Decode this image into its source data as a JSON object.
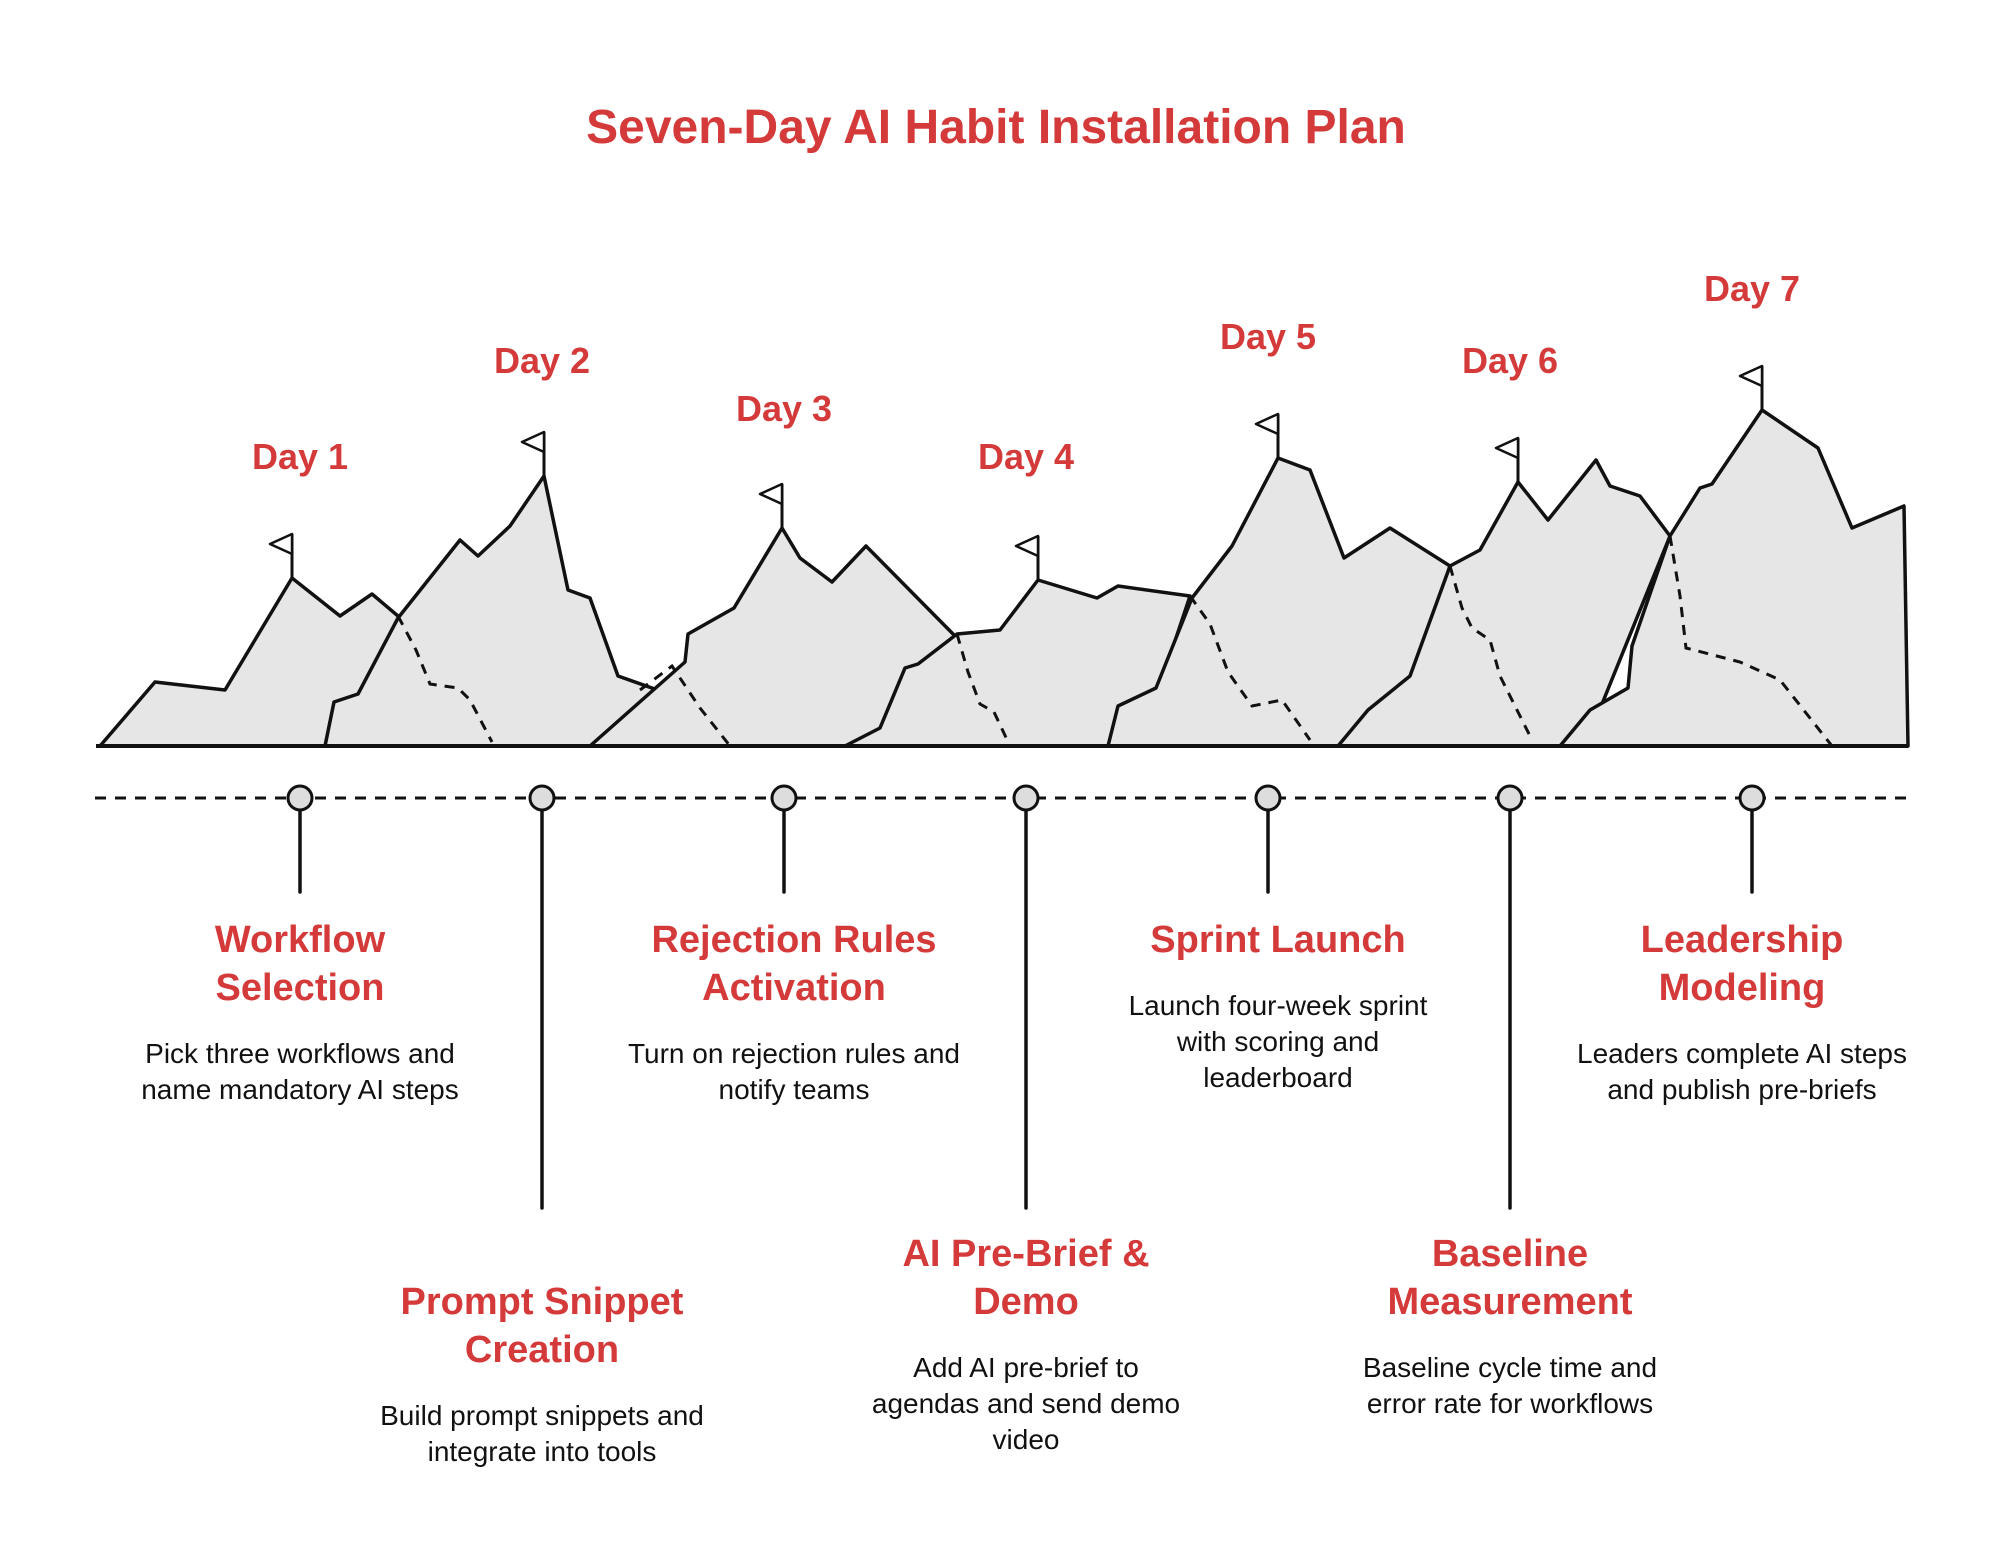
{
  "title": "Seven-Day AI Habit Installation Plan",
  "colors": {
    "accent": "#d43a3a",
    "ink": "#111111",
    "mountain_fill": "#e6e6e6"
  },
  "days": [
    {
      "label": "Day 1",
      "title": "Workflow Selection",
      "description": "Pick three workflows and name mandatory AI steps"
    },
    {
      "label": "Day 2",
      "title": "Prompt Snippet Creation",
      "description": "Build prompt snippets and integrate into tools"
    },
    {
      "label": "Day 3",
      "title": "Rejection Rules Activation",
      "description": "Turn on rejection rules and notify teams"
    },
    {
      "label": "Day 4",
      "title": "AI Pre-Brief & Demo",
      "description": "Add AI pre-brief to agendas and send demo video"
    },
    {
      "label": "Day 5",
      "title": "Sprint Launch",
      "description": "Launch four-week sprint with scoring and leaderboard"
    },
    {
      "label": "Day 6",
      "title": "Baseline Measurement",
      "description": "Baseline cycle time and error rate for workflows"
    },
    {
      "label": "Day 7",
      "title": "Leadership Modeling",
      "description": "Leaders complete AI steps and publish pre-briefs"
    }
  ]
}
